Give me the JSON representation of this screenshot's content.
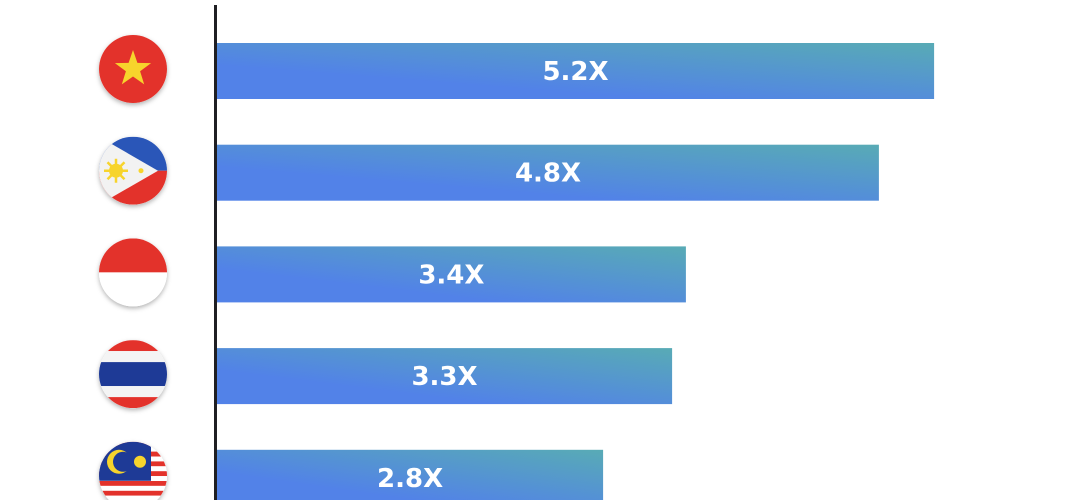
{
  "chart_data": {
    "type": "bar",
    "orientation": "horizontal",
    "categories": [
      "vietnam-flag-icon",
      "philippines-flag-icon",
      "indonesia-flag-icon",
      "thailand-flag-icon",
      "malaysia-flag-icon"
    ],
    "values": [
      5.2,
      4.8,
      3.4,
      3.3,
      2.8
    ],
    "labels": [
      "5.2X",
      "4.8X",
      "3.4X",
      "3.3X",
      "2.8X"
    ],
    "xlim": [
      0,
      6.1
    ],
    "grid": false,
    "colors": {
      "bar_start": "#5282E8",
      "bar_end": "#58ABB5",
      "axis": "#1f1f23",
      "label": "#ffffff"
    }
  }
}
